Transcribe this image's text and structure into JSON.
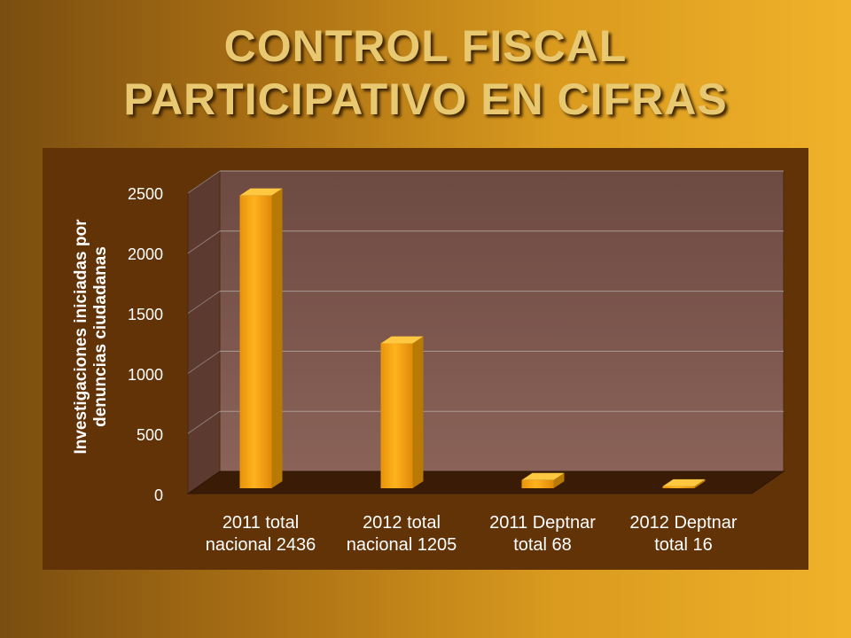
{
  "slide": {
    "title_line1": "CONTROL FISCAL",
    "title_line2": "PARTICIPATIVO EN CIFRAS"
  },
  "colors": {
    "panel": "#633308",
    "bar_front": "#f5a70f",
    "bar_top": "#ffc840",
    "bar_side": "#b87a05",
    "title": "#e8c870"
  },
  "chart_data": {
    "type": "bar",
    "categories": [
      [
        "2011 total",
        "nacional 2436"
      ],
      [
        "2012 total",
        "nacional 1205"
      ],
      [
        "2011 Deptnar",
        "total 68"
      ],
      [
        "2012 Deptnar",
        "total 16"
      ]
    ],
    "values": [
      2436,
      1205,
      68,
      16
    ],
    "ylabel_line1": "Investigaciones iniciadas por",
    "ylabel_line2": "denuncias ciudadanas",
    "yticks": [
      "0",
      "500",
      "1000",
      "1500",
      "2000",
      "2500"
    ],
    "ylim": [
      0,
      2500
    ],
    "grid": true,
    "legend": "none",
    "style": "3d"
  }
}
